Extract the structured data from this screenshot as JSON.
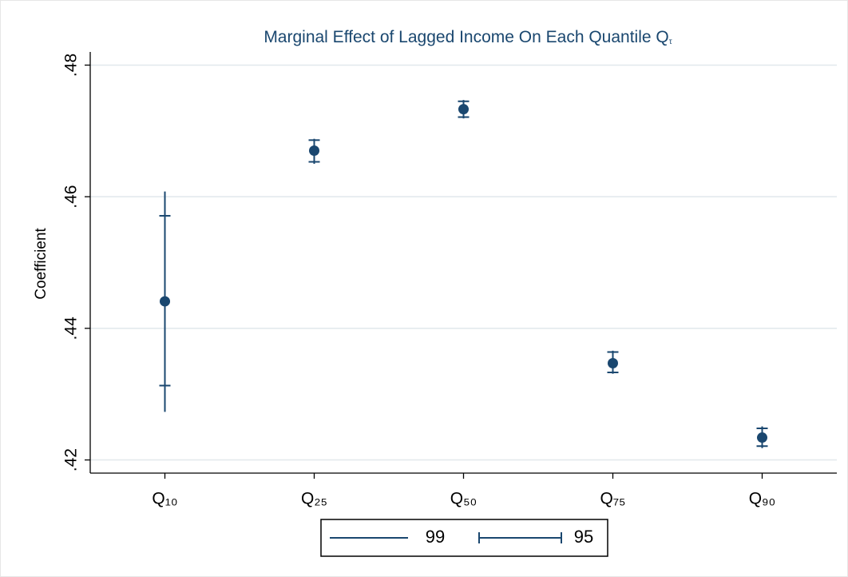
{
  "chart_data": {
    "type": "errorbar",
    "title": "Marginal Effect of Lagged Income On Each Quantile Q",
    "title_subscript": "τ",
    "y_label": "Coefficient",
    "categories": [
      "Q₁₀",
      "Q₂₅",
      "Q₅₀",
      "Q₇₅",
      "Q₉₀"
    ],
    "values": [
      0.4441,
      0.467,
      0.4733,
      0.4347,
      0.4234
    ],
    "color": "#1a476f",
    "series": [
      {
        "name": "99",
        "color": "#1a476f",
        "caps": false,
        "low": [
          0.4273,
          0.465,
          0.4719,
          0.4331,
          0.4218
        ],
        "high": [
          0.4608,
          0.4688,
          0.4747,
          0.4366,
          0.4251
        ]
      },
      {
        "name": "95",
        "color": "#1a476f",
        "caps": true,
        "low": [
          0.4313,
          0.4653,
          0.4721,
          0.4333,
          0.4221
        ],
        "high": [
          0.4571,
          0.4686,
          0.4745,
          0.4364,
          0.4248
        ]
      }
    ],
    "ylim": [
      0.418,
      0.482
    ],
    "yticks": [
      {
        "value": 0.42,
        "label": ".42"
      },
      {
        "value": 0.44,
        "label": ".44"
      },
      {
        "value": 0.46,
        "label": ".46"
      },
      {
        "value": 0.48,
        "label": ".48"
      }
    ],
    "grid": true,
    "legend": "bottom"
  }
}
